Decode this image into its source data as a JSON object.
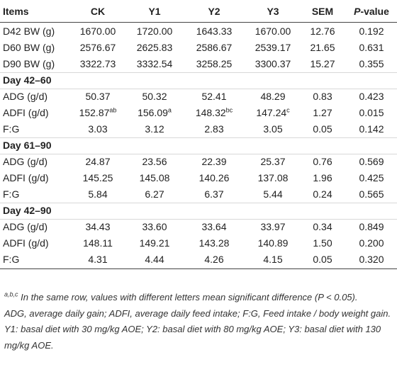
{
  "table": {
    "columns": [
      "Items",
      "CK",
      "Y1",
      "Y2",
      "Y3",
      "SEM",
      {
        "italic": "P",
        "text": "-value"
      }
    ],
    "rows": [
      {
        "cells": [
          "D42 BW (g)",
          "1670.00",
          "1720.00",
          "1643.33",
          "1670.00",
          "12.76",
          "0.192"
        ]
      },
      {
        "cells": [
          "D60 BW (g)",
          "2576.67",
          "2625.83",
          "2586.67",
          "2539.17",
          "21.65",
          "0.631"
        ]
      },
      {
        "cells": [
          "D90 BW (g)",
          "3322.73",
          "3332.54",
          "3258.25",
          "3300.37",
          "15.27",
          "0.355"
        ]
      },
      {
        "section": "Day 42–60"
      },
      {
        "cells": [
          "ADG (g/d)",
          "50.37",
          "50.32",
          "52.41",
          "48.29",
          "0.83",
          "0.423"
        ]
      },
      {
        "cells": [
          "ADFI (g/d)",
          {
            "text": "152.87",
            "sup": "ab"
          },
          {
            "text": "156.09",
            "sup": "a"
          },
          {
            "text": "148.32",
            "sup": "bc"
          },
          {
            "text": "147.24",
            "sup": "c"
          },
          "1.27",
          "0.015"
        ]
      },
      {
        "cells": [
          "F:G",
          "3.03",
          "3.12",
          "2.83",
          "3.05",
          "0.05",
          "0.142"
        ]
      },
      {
        "section": "Day 61–90"
      },
      {
        "cells": [
          "ADG (g/d)",
          "24.87",
          "23.56",
          "22.39",
          "25.37",
          "0.76",
          "0.569"
        ]
      },
      {
        "cells": [
          "ADFI (g/d)",
          "145.25",
          "145.08",
          "140.26",
          "137.08",
          "1.96",
          "0.425"
        ]
      },
      {
        "cells": [
          "F:G",
          "5.84",
          "6.27",
          "6.37",
          "5.44",
          "0.24",
          "0.565"
        ]
      },
      {
        "section": "Day 42–90"
      },
      {
        "cells": [
          "ADG (g/d)",
          "34.43",
          "33.60",
          "33.64",
          "33.97",
          "0.34",
          "0.849"
        ]
      },
      {
        "cells": [
          "ADFI (g/d)",
          "148.11",
          "149.21",
          "143.28",
          "140.89",
          "1.50",
          "0.200"
        ]
      },
      {
        "cells": [
          "F:G",
          "4.31",
          "4.44",
          "4.26",
          "4.15",
          "0.05",
          "0.320"
        ]
      }
    ]
  },
  "footnote": {
    "sup": "a,b,c",
    "note": "In the same row, values with different letters mean significant difference (P < 0.05).",
    "abbreviations": "ADG, average daily gain; ADFI, average daily feed intake; F:G, Feed intake / body weight gain. Y1: basal diet with 30 mg/kg AOE; Y2: basal diet with 80 mg/kg AOE; Y3: basal diet with 130 mg/kg AOE."
  }
}
